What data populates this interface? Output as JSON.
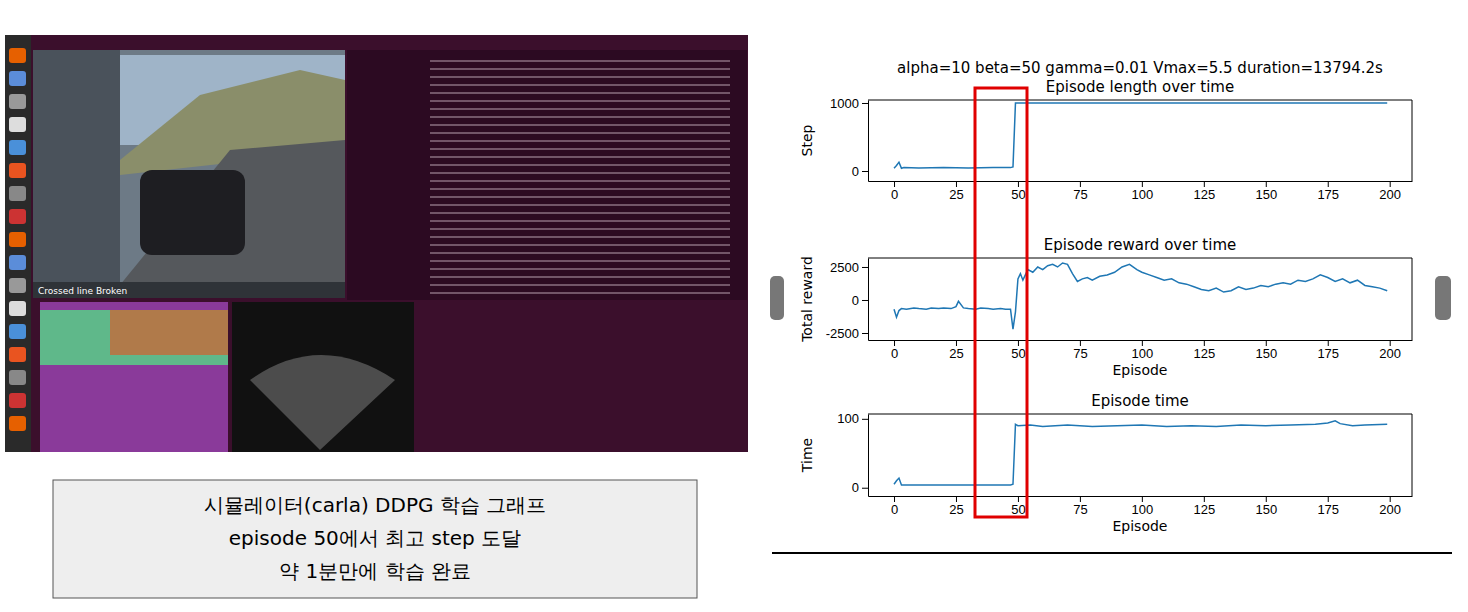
{
  "figure_title": "alpha=10 beta=50 gamma=0.01 Vmax=5.5 duration=13794.2s",
  "caption": [
    "시뮬레이터(carla) DDPG 학습 그래프",
    "episode 50에서 최고 step 도달",
    "약 1분만에 학습 완료"
  ],
  "screenshot": {
    "status": "Crossed line Broken"
  },
  "chart_data": [
    {
      "type": "line",
      "title": "Episode length over time",
      "y_label": "Step",
      "color": "#1f77b4",
      "x": [
        0,
        1,
        2,
        3,
        4,
        10,
        20,
        30,
        40,
        47,
        48,
        49,
        50,
        100,
        150,
        199
      ],
      "values": [
        40,
        80,
        130,
        40,
        50,
        45,
        50,
        45,
        50,
        50,
        60,
        1000,
        1000,
        1000,
        1000,
        1000
      ],
      "xlim": [
        -10.5,
        209
      ],
      "xticks": [
        0,
        25,
        50,
        75,
        100,
        125,
        150,
        175,
        200
      ],
      "ylim": [
        -147,
        1044
      ],
      "yticks": [
        0,
        1000
      ]
    },
    {
      "type": "line",
      "title": "Episode reward over time",
      "x_label": "Episode",
      "y_label": "Total reward",
      "color": "#1f77b4",
      "x": [
        0,
        1,
        2,
        3,
        5,
        8,
        10,
        13,
        15,
        18,
        20,
        23,
        25,
        26,
        28,
        30,
        33,
        35,
        38,
        40,
        43,
        45,
        47,
        48,
        49,
        50,
        51,
        52,
        54,
        56,
        58,
        60,
        62,
        64,
        66,
        68,
        70,
        72,
        74,
        76,
        78,
        80,
        83,
        86,
        89,
        92,
        95,
        98,
        100,
        103,
        106,
        109,
        112,
        115,
        118,
        121,
        124,
        127,
        130,
        133,
        136,
        139,
        142,
        145,
        148,
        151,
        154,
        157,
        160,
        163,
        166,
        169,
        172,
        175,
        178,
        181,
        184,
        187,
        190,
        193,
        196,
        199
      ],
      "values": [
        -700,
        -1300,
        -800,
        -650,
        -700,
        -600,
        -650,
        -700,
        -600,
        -650,
        -600,
        -650,
        -500,
        -100,
        -600,
        -650,
        -700,
        -600,
        -650,
        -700,
        -650,
        -700,
        -700,
        -2200,
        -900,
        1600,
        2000,
        1500,
        2300,
        2100,
        2500,
        2300,
        2600,
        2700,
        2500,
        2800,
        2700,
        2000,
        1400,
        1600,
        1700,
        1500,
        1800,
        1900,
        2100,
        2500,
        2700,
        2300,
        2100,
        1900,
        1700,
        1500,
        1600,
        1300,
        1200,
        1000,
        800,
        700,
        900,
        600,
        700,
        1000,
        800,
        900,
        1100,
        1000,
        1200,
        1300,
        1200,
        1500,
        1400,
        1600,
        1900,
        1700,
        1400,
        1600,
        1300,
        1500,
        1100,
        1000,
        900,
        700
      ],
      "xlim": [
        -10.5,
        209
      ],
      "xticks": [
        0,
        25,
        50,
        75,
        100,
        125,
        150,
        175,
        200
      ],
      "ylim": [
        -3030,
        3180
      ],
      "yticks": [
        -2500,
        0,
        2500
      ]
    },
    {
      "type": "line",
      "title": "Episode  time",
      "x_label": "Episode",
      "y_label": "Time",
      "color": "#1f77b4",
      "x": [
        0,
        1,
        2,
        3,
        4,
        10,
        20,
        30,
        40,
        47,
        48,
        49,
        50,
        55,
        60,
        70,
        80,
        90,
        100,
        110,
        120,
        130,
        140,
        150,
        160,
        170,
        175,
        178,
        180,
        185,
        190,
        199
      ],
      "values": [
        5,
        10,
        14,
        4,
        4,
        4,
        4,
        4,
        4,
        4,
        5,
        92,
        90,
        91,
        89,
        91,
        89,
        90,
        91,
        89,
        90,
        89,
        91,
        90,
        91,
        92,
        94,
        97,
        93,
        90,
        91,
        92
      ],
      "xlim": [
        -10.5,
        209
      ],
      "xticks": [
        0,
        25,
        50,
        75,
        100,
        125,
        150,
        175,
        200
      ],
      "ylim": [
        -12,
        107
      ],
      "yticks": [
        0,
        100
      ]
    }
  ]
}
